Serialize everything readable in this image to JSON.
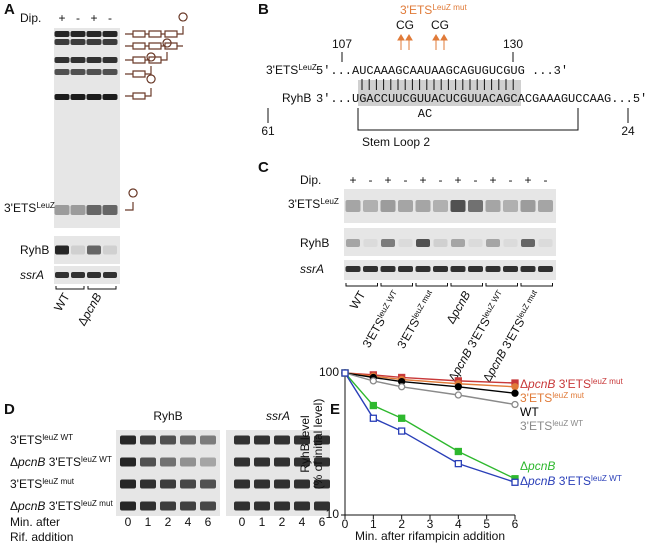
{
  "panel_a": {
    "letter": "A",
    "dip": "Dip.",
    "signs": [
      "+",
      "-",
      "+",
      "-"
    ],
    "band_label": {
      "parts": [
        {
          "t": "3'ETS"
        },
        {
          "t": "LeuZ",
          "sup": true
        }
      ]
    },
    "ryhb": "RyhB",
    "ssra": "ssrA",
    "lanes": [
      {
        "parts": [
          {
            "t": "WT"
          }
        ]
      },
      {
        "parts": [
          {
            "t": "Δ"
          },
          {
            "t": "pcnB",
            "i": true
          }
        ]
      }
    ]
  },
  "panel_b": {
    "letter": "B",
    "pos_start": "107",
    "pos_end": "130",
    "mut_label": {
      "parts": [
        {
          "t": "3'ETS"
        },
        {
          "t": "LeuZ mut",
          "sup": true
        }
      ]
    },
    "mutations": [
      "CG",
      "CG"
    ],
    "top_label": {
      "parts": [
        {
          "t": "3'ETS"
        },
        {
          "t": "LeuZ",
          "sup": true
        }
      ]
    },
    "top_seq": "5'...AUCAAAGCAAUAAGCAGUGUCGUG ...3'",
    "bottom_label": "RyhB",
    "bottom_seq": "3'...UGACCUUCGUUACUCGUUACAGCACGAAAGUCCAAG...5'",
    "bulge": "AC",
    "pos_left": "61",
    "pos_right": "24",
    "region": "Stem Loop 2"
  },
  "panel_c": {
    "letter": "C",
    "dip": "Dip.",
    "signs": [
      "+",
      "-",
      "+",
      "-",
      "+",
      "-",
      "+",
      "-",
      "+",
      "-",
      "+",
      "-"
    ],
    "band_label": {
      "parts": [
        {
          "t": "3'ETS"
        },
        {
          "t": "LeuZ",
          "sup": true
        }
      ]
    },
    "ryhb": "RyhB",
    "ssra": "ssrA",
    "lanes": [
      {
        "parts": [
          {
            "t": "WT"
          }
        ]
      },
      {
        "parts": [
          {
            "t": "3'ETS"
          },
          {
            "t": "leuZ WT",
            "sup": true
          }
        ]
      },
      {
        "parts": [
          {
            "t": "3'ETS"
          },
          {
            "t": "leuZ mut",
            "sup": true
          }
        ]
      },
      {
        "parts": [
          {
            "t": "Δ"
          },
          {
            "t": "pcnB",
            "i": true
          }
        ]
      },
      {
        "parts": [
          {
            "t": "Δ"
          },
          {
            "t": "pcnB",
            "i": true
          },
          {
            "t": " 3'ETS"
          },
          {
            "t": "leuZ WT",
            "sup": true
          }
        ]
      },
      {
        "parts": [
          {
            "t": "Δ"
          },
          {
            "t": "pcnB",
            "i": true
          },
          {
            "t": " 3'ETS"
          },
          {
            "t": "leuZ mut",
            "sup": true
          }
        ]
      }
    ]
  },
  "panel_d": {
    "letter": "D",
    "rows": [
      {
        "parts": [
          {
            "t": "3'ETS"
          },
          {
            "t": "leuZ WT",
            "sup": true
          }
        ]
      },
      {
        "parts": [
          {
            "t": "Δ"
          },
          {
            "t": "pcnB",
            "i": true
          },
          {
            "t": " 3'ETS"
          },
          {
            "t": "leuZ WT",
            "sup": true
          }
        ]
      },
      {
        "parts": [
          {
            "t": "3'ETS"
          },
          {
            "t": "leuZ mut",
            "sup": true
          }
        ]
      },
      {
        "parts": [
          {
            "t": "Δ"
          },
          {
            "t": "pcnB",
            "i": true
          },
          {
            "t": " 3'ETS"
          },
          {
            "t": "leuZ mut",
            "sup": true
          }
        ]
      }
    ],
    "gel_titles": [
      "RyhB",
      "ssrA"
    ],
    "times": [
      "0",
      "1",
      "2",
      "4",
      "6",
      "0",
      "1",
      "2",
      "4",
      "6"
    ],
    "footer": [
      "Min. after",
      "Rif. addition"
    ]
  },
  "chart_data": {
    "type": "line",
    "letter": "E",
    "y_label": [
      "RyhB level",
      "(% of initial level)"
    ],
    "x_label": "Min. after rifampicin addition",
    "x": [
      0,
      1,
      2,
      4,
      6
    ],
    "xlim": [
      0,
      6
    ],
    "xticks": [
      0,
      1,
      2,
      3,
      4,
      5,
      6
    ],
    "ylim": [
      10,
      100
    ],
    "yticks": [
      10,
      100
    ],
    "log_y": true,
    "series": [
      {
        "name": {
          "parts": [
            {
              "t": "Δ"
            },
            {
              "t": "pcnB",
              "i": true
            },
            {
              "t": " 3'ETS"
            },
            {
              "t": "leuZ mut",
              "sup": true
            }
          ]
        },
        "color": "#c8393a",
        "marker": "square",
        "filled": true,
        "values": [
          100,
          97,
          93,
          88,
          85
        ]
      },
      {
        "name": {
          "parts": [
            {
              "t": "3'ETS"
            },
            {
              "t": "leuZ mut",
              "sup": true
            }
          ]
        },
        "color": "#e07b39",
        "marker": "circle",
        "filled": true,
        "values": [
          100,
          95,
          90,
          84,
          80
        ]
      },
      {
        "name": {
          "parts": [
            {
              "t": "WT"
            }
          ]
        },
        "color": "#000000",
        "marker": "circle",
        "filled": true,
        "values": [
          100,
          93,
          87,
          80,
          72
        ]
      },
      {
        "name": {
          "parts": [
            {
              "t": "3'ETS"
            },
            {
              "t": "leuZ WT",
              "sup": true
            }
          ]
        },
        "color": "#8a8a8a",
        "marker": "circle",
        "filled": false,
        "values": [
          100,
          88,
          80,
          70,
          60
        ]
      },
      {
        "name": {
          "parts": [
            {
              "t": "Δ"
            },
            {
              "t": "pcnB",
              "i": true
            }
          ]
        },
        "color": "#2eb82e",
        "marker": "square",
        "filled": true,
        "values": [
          100,
          59,
          48,
          28,
          18
        ]
      },
      {
        "name": {
          "parts": [
            {
              "t": "Δ"
            },
            {
              "t": "pcnB",
              "i": true
            },
            {
              "t": " 3'ETS"
            },
            {
              "t": "leuZ WT",
              "sup": true
            }
          ]
        },
        "color": "#2a3fb8",
        "marker": "square",
        "filled": false,
        "values": [
          100,
          48,
          39,
          23,
          17
        ]
      }
    ]
  }
}
